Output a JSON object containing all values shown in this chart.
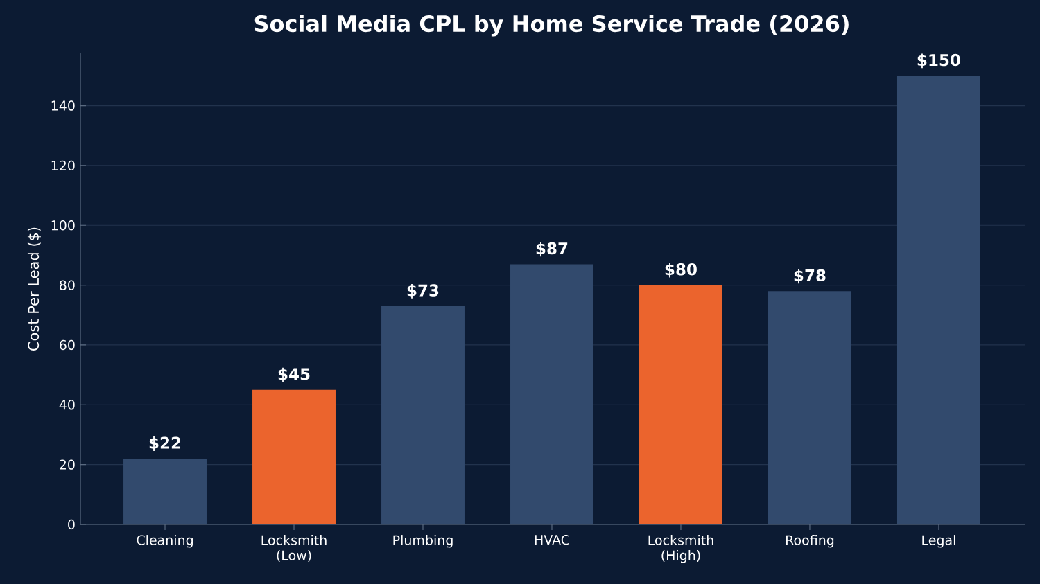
{
  "chart_data": {
    "type": "bar",
    "title": "Social Media CPL by Home Service Trade (2026)",
    "ylabel": "Cost Per Lead ($)",
    "categories": [
      "Cleaning",
      "Locksmith (Low)",
      "Plumbing",
      "HVAC",
      "Locksmith (High)",
      "Roofing",
      "Legal"
    ],
    "values": [
      22,
      45,
      73,
      87,
      80,
      78,
      150
    ],
    "colors": [
      "#324a6d",
      "#eb642d",
      "#324a6d",
      "#324a6d",
      "#eb642d",
      "#324a6d",
      "#324a6d"
    ],
    "value_labels": [
      "$22",
      "$45",
      "$73",
      "$87",
      "$80",
      "$78",
      "$150"
    ],
    "ylim": [
      0,
      157.5
    ],
    "yticks": [
      0,
      20,
      40,
      60,
      80,
      100,
      120,
      140
    ],
    "grid": "y"
  }
}
